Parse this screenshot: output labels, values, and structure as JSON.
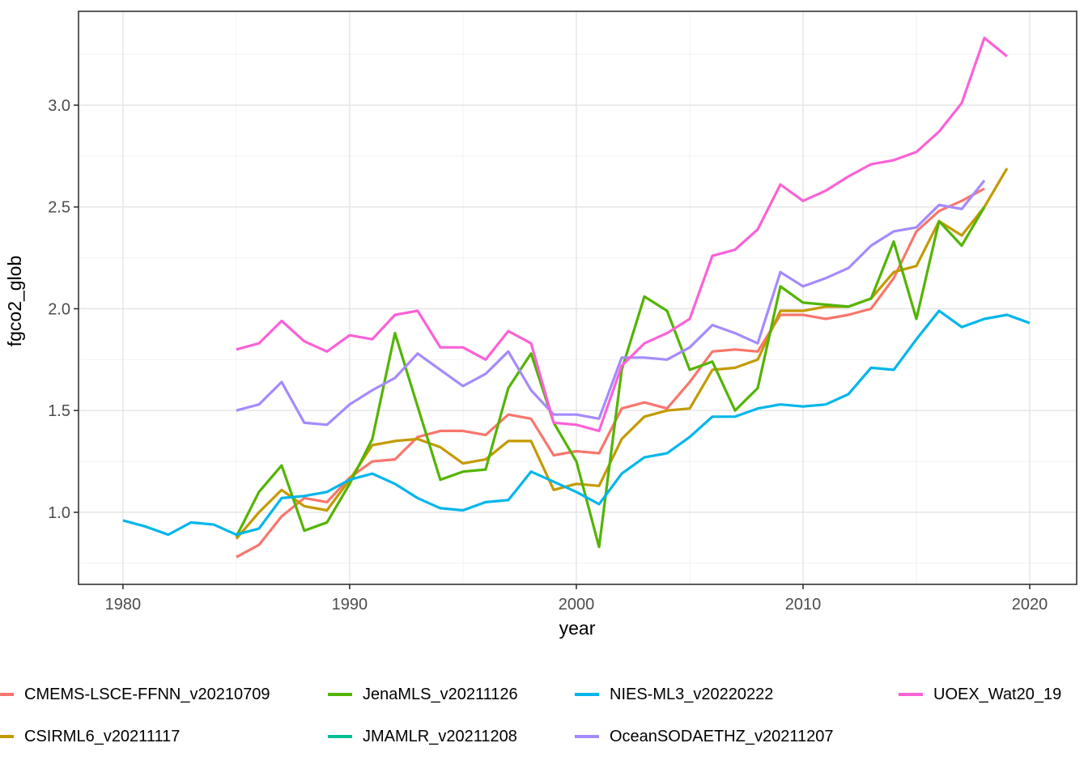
{
  "chart_data": {
    "type": "line",
    "title": "",
    "xlabel": "year",
    "ylabel": "fgco2_glob",
    "xlim": [
      1978.04,
      2022.07
    ],
    "ylim": [
      0.646,
      3.461
    ],
    "x_ticks": [
      1980,
      1990,
      2000,
      2010,
      2020
    ],
    "x_tick_labels": [
      "1980",
      "1990",
      "2000",
      "2010",
      "2020"
    ],
    "x_minor_ticks": [
      1985,
      1995,
      2005,
      2015
    ],
    "y_ticks": [
      1.0,
      1.5,
      2.0,
      2.5,
      3.0
    ],
    "y_tick_labels": [
      "1.0",
      "1.5",
      "2.0",
      "2.5",
      "3.0"
    ],
    "y_minor_ticks": [
      0.75,
      1.25,
      1.75,
      2.25,
      2.75,
      3.25
    ],
    "grid": true,
    "legend_position": "bottom",
    "series": [
      {
        "name": "CMEMS-LSCE-FFNN_v20210709",
        "color": "#F8766D",
        "points": [
          [
            1985,
            0.78
          ],
          [
            1986,
            0.84
          ],
          [
            1987,
            0.98
          ],
          [
            1988,
            1.07
          ],
          [
            1989,
            1.05
          ],
          [
            1990,
            1.17
          ],
          [
            1991,
            1.25
          ],
          [
            1992,
            1.26
          ],
          [
            1993,
            1.37
          ],
          [
            1994,
            1.4
          ],
          [
            1995,
            1.4
          ],
          [
            1996,
            1.38
          ],
          [
            1997,
            1.48
          ],
          [
            1998,
            1.46
          ],
          [
            1999,
            1.28
          ],
          [
            2000,
            1.3
          ],
          [
            2001,
            1.29
          ],
          [
            2002,
            1.51
          ],
          [
            2003,
            1.54
          ],
          [
            2004,
            1.51
          ],
          [
            2005,
            1.64
          ],
          [
            2006,
            1.79
          ],
          [
            2007,
            1.8
          ],
          [
            2008,
            1.79
          ],
          [
            2009,
            1.97
          ],
          [
            2010,
            1.97
          ],
          [
            2011,
            1.95
          ],
          [
            2012,
            1.97
          ],
          [
            2013,
            2.0
          ],
          [
            2014,
            2.15
          ],
          [
            2015,
            2.38
          ],
          [
            2016,
            2.48
          ],
          [
            2017,
            2.53
          ],
          [
            2018,
            2.59
          ]
        ]
      },
      {
        "name": "CSIRML6_v20211117",
        "color": "#C49A00",
        "points": [
          [
            1985,
            0.87
          ],
          [
            1986,
            1.0
          ],
          [
            1987,
            1.11
          ],
          [
            1988,
            1.03
          ],
          [
            1989,
            1.01
          ],
          [
            1990,
            1.16
          ],
          [
            1991,
            1.33
          ],
          [
            1992,
            1.35
          ],
          [
            1993,
            1.36
          ],
          [
            1994,
            1.32
          ],
          [
            1995,
            1.24
          ],
          [
            1996,
            1.26
          ],
          [
            1997,
            1.35
          ],
          [
            1998,
            1.35
          ],
          [
            1999,
            1.11
          ],
          [
            2000,
            1.14
          ],
          [
            2001,
            1.13
          ],
          [
            2002,
            1.36
          ],
          [
            2003,
            1.47
          ],
          [
            2004,
            1.5
          ],
          [
            2005,
            1.51
          ],
          [
            2006,
            1.7
          ],
          [
            2007,
            1.71
          ],
          [
            2008,
            1.75
          ],
          [
            2009,
            1.99
          ],
          [
            2010,
            1.99
          ],
          [
            2011,
            2.01
          ],
          [
            2012,
            2.01
          ],
          [
            2013,
            2.05
          ],
          [
            2014,
            2.18
          ],
          [
            2015,
            2.21
          ],
          [
            2016,
            2.43
          ],
          [
            2017,
            2.36
          ],
          [
            2018,
            2.5
          ],
          [
            2019,
            2.69
          ]
        ]
      },
      {
        "name": "JenaMLS_v20211126",
        "color": "#53B400",
        "points": [
          [
            1985,
            0.88
          ],
          [
            1986,
            1.1
          ],
          [
            1987,
            1.23
          ],
          [
            1988,
            0.91
          ],
          [
            1989,
            0.95
          ],
          [
            1990,
            1.14
          ],
          [
            1991,
            1.36
          ],
          [
            1992,
            1.88
          ],
          [
            1993,
            1.52
          ],
          [
            1994,
            1.16
          ],
          [
            1995,
            1.2
          ],
          [
            1996,
            1.21
          ],
          [
            1997,
            1.61
          ],
          [
            1998,
            1.78
          ],
          [
            1999,
            1.44
          ],
          [
            2000,
            1.25
          ],
          [
            2001,
            0.83
          ],
          [
            2002,
            1.7
          ],
          [
            2003,
            2.06
          ],
          [
            2004,
            1.99
          ],
          [
            2005,
            1.7
          ],
          [
            2006,
            1.74
          ],
          [
            2007,
            1.5
          ],
          [
            2008,
            1.61
          ],
          [
            2009,
            2.11
          ],
          [
            2010,
            2.03
          ],
          [
            2011,
            2.02
          ],
          [
            2012,
            2.01
          ],
          [
            2013,
            2.05
          ],
          [
            2014,
            2.33
          ],
          [
            2015,
            1.95
          ],
          [
            2016,
            2.43
          ],
          [
            2017,
            2.31
          ],
          [
            2018,
            2.5
          ]
        ]
      },
      {
        "name": "JMAMLR_v20211208",
        "color": "#00C094",
        "points": []
      },
      {
        "name": "NIES-ML3_v20220222",
        "color": "#00B6EB",
        "points": [
          [
            1980,
            0.96
          ],
          [
            1981,
            0.93
          ],
          [
            1982,
            0.89
          ],
          [
            1983,
            0.95
          ],
          [
            1984,
            0.94
          ],
          [
            1985,
            0.89
          ],
          [
            1986,
            0.92
          ],
          [
            1987,
            1.07
          ],
          [
            1988,
            1.08
          ],
          [
            1989,
            1.1
          ],
          [
            1990,
            1.16
          ],
          [
            1991,
            1.19
          ],
          [
            1992,
            1.14
          ],
          [
            1993,
            1.07
          ],
          [
            1994,
            1.02
          ],
          [
            1995,
            1.01
          ],
          [
            1996,
            1.05
          ],
          [
            1997,
            1.06
          ],
          [
            1998,
            1.2
          ],
          [
            1999,
            1.15
          ],
          [
            2000,
            1.1
          ],
          [
            2001,
            1.04
          ],
          [
            2002,
            1.19
          ],
          [
            2003,
            1.27
          ],
          [
            2004,
            1.29
          ],
          [
            2005,
            1.37
          ],
          [
            2006,
            1.47
          ],
          [
            2007,
            1.47
          ],
          [
            2008,
            1.51
          ],
          [
            2009,
            1.53
          ],
          [
            2010,
            1.52
          ],
          [
            2011,
            1.53
          ],
          [
            2012,
            1.58
          ],
          [
            2013,
            1.71
          ],
          [
            2014,
            1.7
          ],
          [
            2015,
            1.85
          ],
          [
            2016,
            1.99
          ],
          [
            2017,
            1.91
          ],
          [
            2018,
            1.95
          ],
          [
            2019,
            1.97
          ],
          [
            2020,
            1.93
          ]
        ]
      },
      {
        "name": "OceanSODAETHZ_v20211207",
        "color": "#A58AFF",
        "points": [
          [
            1985,
            1.5
          ],
          [
            1986,
            1.53
          ],
          [
            1987,
            1.64
          ],
          [
            1988,
            1.44
          ],
          [
            1989,
            1.43
          ],
          [
            1990,
            1.53
          ],
          [
            1991,
            1.6
          ],
          [
            1992,
            1.66
          ],
          [
            1993,
            1.78
          ],
          [
            1994,
            1.7
          ],
          [
            1995,
            1.62
          ],
          [
            1996,
            1.68
          ],
          [
            1997,
            1.79
          ],
          [
            1998,
            1.6
          ],
          [
            1999,
            1.48
          ],
          [
            2000,
            1.48
          ],
          [
            2001,
            1.46
          ],
          [
            2002,
            1.76
          ],
          [
            2003,
            1.76
          ],
          [
            2004,
            1.75
          ],
          [
            2005,
            1.81
          ],
          [
            2006,
            1.92
          ],
          [
            2007,
            1.88
          ],
          [
            2008,
            1.83
          ],
          [
            2009,
            2.18
          ],
          [
            2010,
            2.11
          ],
          [
            2011,
            2.15
          ],
          [
            2012,
            2.2
          ],
          [
            2013,
            2.31
          ],
          [
            2014,
            2.38
          ],
          [
            2015,
            2.4
          ],
          [
            2016,
            2.51
          ],
          [
            2017,
            2.49
          ],
          [
            2018,
            2.63
          ]
        ]
      },
      {
        "name": "UOEX_Wat20_19",
        "color": "#FB61D7",
        "points": [
          [
            1985,
            1.8
          ],
          [
            1986,
            1.83
          ],
          [
            1987,
            1.94
          ],
          [
            1988,
            1.84
          ],
          [
            1989,
            1.79
          ],
          [
            1990,
            1.87
          ],
          [
            1991,
            1.85
          ],
          [
            1992,
            1.97
          ],
          [
            1993,
            1.99
          ],
          [
            1994,
            1.81
          ],
          [
            1995,
            1.81
          ],
          [
            1996,
            1.75
          ],
          [
            1997,
            1.89
          ],
          [
            1998,
            1.83
          ],
          [
            1999,
            1.44
          ],
          [
            2000,
            1.43
          ],
          [
            2001,
            1.4
          ],
          [
            2002,
            1.72
          ],
          [
            2003,
            1.83
          ],
          [
            2004,
            1.88
          ],
          [
            2005,
            1.95
          ],
          [
            2006,
            2.26
          ],
          [
            2007,
            2.29
          ],
          [
            2008,
            2.39
          ],
          [
            2009,
            2.61
          ],
          [
            2010,
            2.53
          ],
          [
            2011,
            2.58
          ],
          [
            2012,
            2.65
          ],
          [
            2013,
            2.71
          ],
          [
            2014,
            2.73
          ],
          [
            2015,
            2.77
          ],
          [
            2016,
            2.87
          ],
          [
            2017,
            3.01
          ],
          [
            2018,
            3.33
          ],
          [
            2019,
            3.24
          ]
        ]
      }
    ],
    "style": {
      "panel_border_color": "#333333",
      "major_grid_color": "#E4E4E4",
      "minor_grid_color": "#F2F2F2",
      "tick_color": "#333333",
      "tick_label_color": "#4D4D4D",
      "background": "#FFFFFF"
    }
  }
}
